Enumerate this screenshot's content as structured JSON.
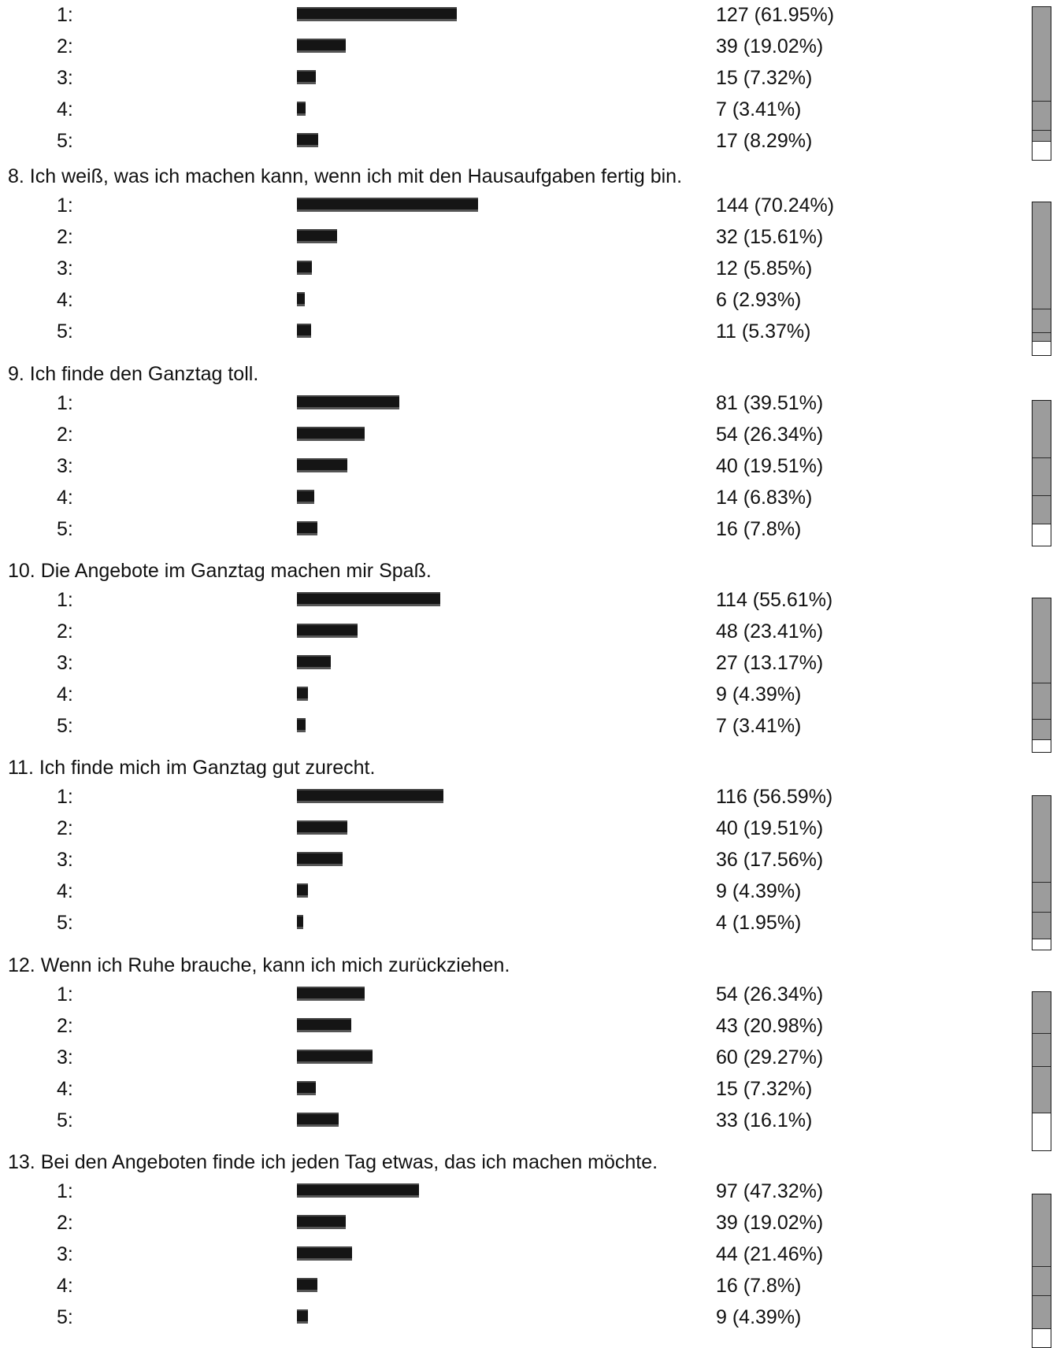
{
  "chart_data": [
    {
      "type": "bar",
      "title": "",
      "categories": [
        "1:",
        "2:",
        "3:",
        "4:",
        "5:"
      ],
      "values": [
        127,
        39,
        15,
        7,
        17
      ],
      "labels": [
        "127 (61.95%)",
        "39 (19.02%)",
        "15 (7.32%)",
        "7 (3.41%)",
        "17 (8.29%)"
      ],
      "percents": [
        61.95,
        19.02,
        7.32,
        3.41,
        8.29
      ]
    },
    {
      "type": "bar",
      "title": "8. Ich weiß, was ich machen kann, wenn ich mit den Hausaufgaben fertig bin.",
      "categories": [
        "1:",
        "2:",
        "3:",
        "4:",
        "5:"
      ],
      "values": [
        144,
        32,
        12,
        6,
        11
      ],
      "labels": [
        "144 (70.24%)",
        "32 (15.61%)",
        "12 (5.85%)",
        "6 (2.93%)",
        "11 (5.37%)"
      ],
      "percents": [
        70.24,
        15.61,
        5.85,
        2.93,
        5.37
      ]
    },
    {
      "type": "bar",
      "title": "9. Ich finde den Ganztag toll.",
      "categories": [
        "1:",
        "2:",
        "3:",
        "4:",
        "5:"
      ],
      "values": [
        81,
        54,
        40,
        14,
        16
      ],
      "labels": [
        "81 (39.51%)",
        "54 (26.34%)",
        "40 (19.51%)",
        "14 (6.83%)",
        "16 (7.8%)"
      ],
      "percents": [
        39.51,
        26.34,
        19.51,
        6.83,
        7.8
      ]
    },
    {
      "type": "bar",
      "title": "10. Die Angebote im Ganztag machen mir Spaß.",
      "categories": [
        "1:",
        "2:",
        "3:",
        "4:",
        "5:"
      ],
      "values": [
        114,
        48,
        27,
        9,
        7
      ],
      "labels": [
        "114 (55.61%)",
        "48 (23.41%)",
        "27 (13.17%)",
        "9 (4.39%)",
        "7 (3.41%)"
      ],
      "percents": [
        55.61,
        23.41,
        13.17,
        4.39,
        3.41
      ]
    },
    {
      "type": "bar",
      "title": "11. Ich finde mich im Ganztag gut zurecht.",
      "categories": [
        "1:",
        "2:",
        "3:",
        "4:",
        "5:"
      ],
      "values": [
        116,
        40,
        36,
        9,
        4
      ],
      "labels": [
        "116 (56.59%)",
        "40 (19.51%)",
        "36 (17.56%)",
        "9 (4.39%)",
        "4 (1.95%)"
      ],
      "percents": [
        56.59,
        19.51,
        17.56,
        4.39,
        1.95
      ]
    },
    {
      "type": "bar",
      "title": "12. Wenn ich Ruhe brauche, kann ich mich zurückziehen.",
      "categories": [
        "1:",
        "2:",
        "3:",
        "4:",
        "5:"
      ],
      "values": [
        54,
        43,
        60,
        15,
        33
      ],
      "labels": [
        "54 (26.34%)",
        "43 (20.98%)",
        "60 (29.27%)",
        "15 (7.32%)",
        "33 (16.1%)"
      ],
      "percents": [
        26.34,
        20.98,
        29.27,
        7.32,
        16.1
      ]
    },
    {
      "type": "bar",
      "title": "13. Bei den Angeboten finde ich jeden Tag etwas, das ich machen möchte.",
      "categories": [
        "1:",
        "2:",
        "3:",
        "4:",
        "5:"
      ],
      "values": [
        97,
        39,
        44,
        16,
        9
      ],
      "labels": [
        "97 (47.32%)",
        "39 (19.02%)",
        "44 (21.46%)",
        "16 (7.8%)",
        "9 (4.39%)"
      ],
      "percents": [
        47.32,
        19.02,
        21.46,
        7.8,
        4.39
      ]
    }
  ],
  "colors": {
    "bar": "#151515",
    "stack_fill": "#9c9c9c",
    "stack_border": "#1b1b1b",
    "text": "#111111"
  }
}
